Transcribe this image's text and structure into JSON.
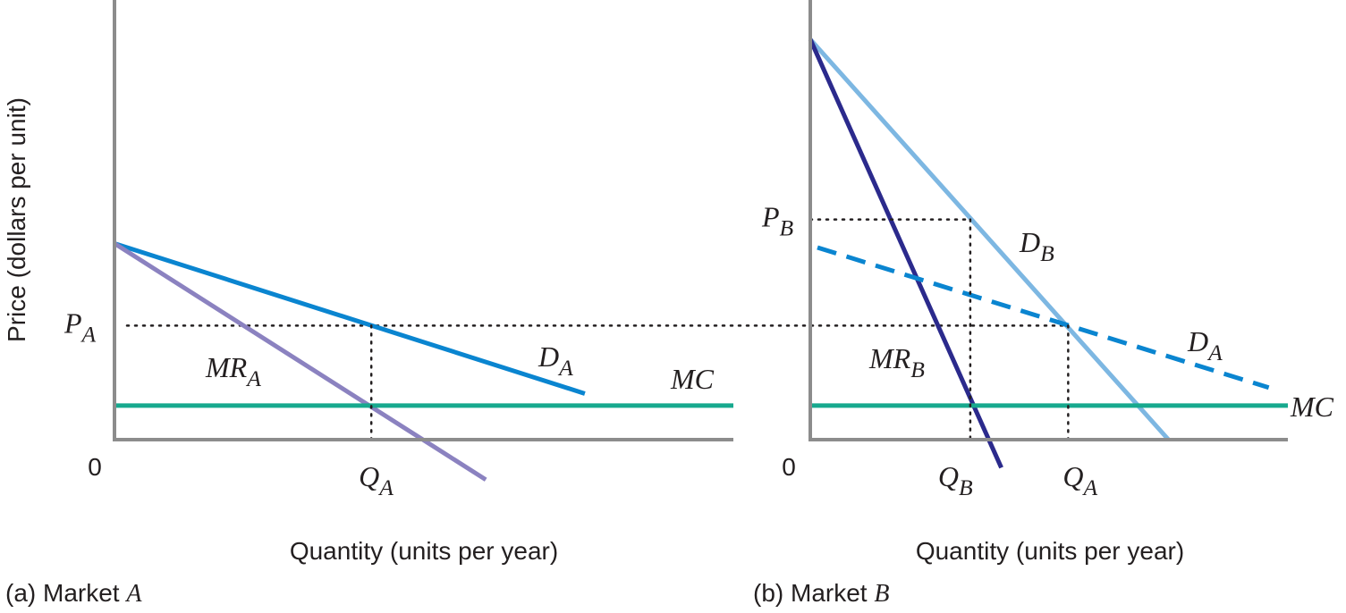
{
  "colors": {
    "axis": "#8c8c8c",
    "demand_a": "#0a85d0",
    "marginal_revenue_a": "#8b82c0",
    "marginal_cost": "#17a98e",
    "demand_b": "#7db7e2",
    "marginal_revenue_b": "#2b2a8c",
    "demand_a_dashed": "#0a85d0",
    "guides": "#231f20",
    "text": "#231f20"
  },
  "ylabel": "Price (dollars per unit)",
  "chart_data": [
    {
      "type": "line",
      "panel_label_prefix": "(a) Market ",
      "panel_label_var": "A",
      "xlabel": "Quantity (units per year)",
      "origin_label": "0",
      "xlim": [
        0,
        10
      ],
      "ylim": [
        0,
        10
      ],
      "series": [
        {
          "name": "D",
          "sub": "A",
          "color_key": "demand_a",
          "dashed": false,
          "points": [
            [
              0,
              4.9
            ],
            [
              7.6,
              1.15
            ]
          ]
        },
        {
          "name": "MR",
          "sub": "A",
          "color_key": "marginal_revenue_a",
          "dashed": false,
          "points": [
            [
              0,
              4.9
            ],
            [
              6.0,
              -1.0
            ]
          ]
        },
        {
          "name": "MC",
          "sub": "",
          "color_key": "marginal_cost",
          "dashed": false,
          "points": [
            [
              0,
              0.85
            ],
            [
              10,
              0.85
            ]
          ]
        }
      ],
      "reference_points": [
        {
          "axis_label": "P",
          "axis_sub": "A",
          "qty_label": "Q",
          "qty_sub": "A",
          "x": 4.15,
          "y": 2.85
        }
      ]
    },
    {
      "type": "line",
      "panel_label_prefix": "(b) Market ",
      "panel_label_var": "B",
      "xlabel": "Quantity (units per year)",
      "origin_label": "0",
      "xlim": [
        0,
        10
      ],
      "ylim": [
        0,
        10
      ],
      "series": [
        {
          "name": "D",
          "sub": "B",
          "color_key": "demand_b",
          "dashed": false,
          "points": [
            [
              0,
              10.0
            ],
            [
              7.5,
              0.0
            ]
          ]
        },
        {
          "name": "MR",
          "sub": "B",
          "color_key": "marginal_revenue_b",
          "dashed": false,
          "points": [
            [
              0,
              10.0
            ],
            [
              4.0,
              -0.7
            ]
          ]
        },
        {
          "name": "D",
          "sub": "A",
          "color_key": "demand_a_dashed",
          "dashed": true,
          "points": [
            [
              0.15,
              4.8
            ],
            [
              9.6,
              1.3
            ]
          ]
        },
        {
          "name": "MC",
          "sub": "",
          "color_key": "marginal_cost",
          "dashed": false,
          "points": [
            [
              0,
              0.85
            ],
            [
              10,
              0.85
            ]
          ]
        }
      ],
      "reference_points": [
        {
          "axis_label": "P",
          "axis_sub": "B",
          "qty_label": "Q",
          "qty_sub": "B",
          "x": 3.35,
          "y": 5.5
        },
        {
          "axis_label": "",
          "axis_sub": "",
          "qty_label": "Q",
          "qty_sub": "A",
          "x": 5.4,
          "y": 2.85
        }
      ]
    }
  ]
}
